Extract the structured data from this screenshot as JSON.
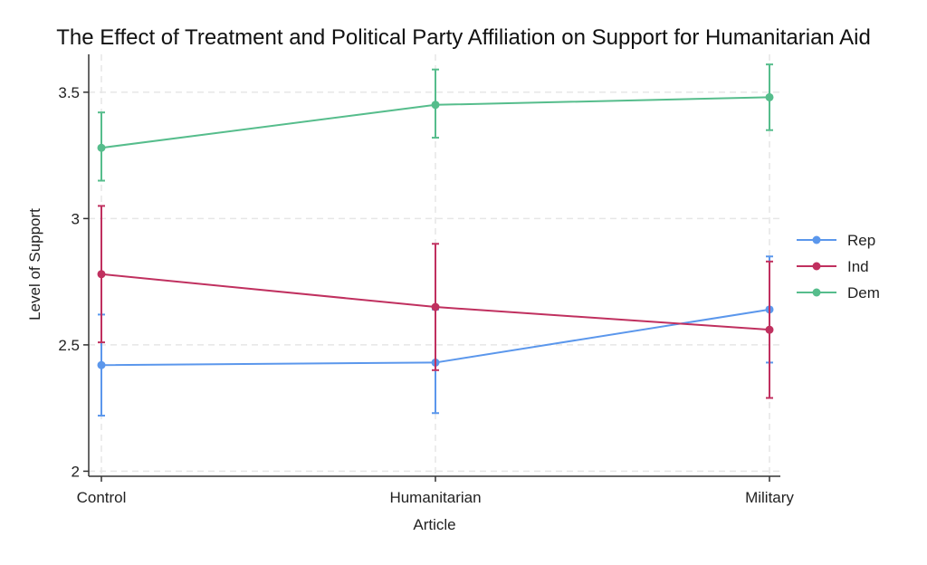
{
  "chart_data": {
    "type": "line",
    "title": "The Effect of Treatment and Political Party Affiliation on Support for Humanitarian Aid",
    "xlabel": "Article",
    "ylabel": "Level of Support",
    "categories": [
      "Control",
      "Humanitarian",
      "Military"
    ],
    "ylim": [
      1.98,
      3.65
    ],
    "yticks": [
      2,
      2.5,
      3,
      3.5
    ],
    "ytick_labels": [
      "2",
      "2.5",
      "3",
      "3.5"
    ],
    "grid": true,
    "legend_position": "right",
    "series": [
      {
        "name": "Rep",
        "color": "#5b97ec",
        "values": [
          2.42,
          2.43,
          2.64
        ],
        "lower": [
          2.22,
          2.23,
          2.43
        ],
        "upper": [
          2.62,
          2.64,
          2.85
        ]
      },
      {
        "name": "Ind",
        "color": "#c0305f",
        "values": [
          2.78,
          2.65,
          2.56
        ],
        "lower": [
          2.51,
          2.4,
          2.29
        ],
        "upper": [
          3.05,
          2.9,
          2.83
        ]
      },
      {
        "name": "Dem",
        "color": "#56bd8c",
        "values": [
          3.28,
          3.45,
          3.48
        ],
        "lower": [
          3.15,
          3.32,
          3.35
        ],
        "upper": [
          3.42,
          3.59,
          3.61
        ]
      }
    ]
  }
}
